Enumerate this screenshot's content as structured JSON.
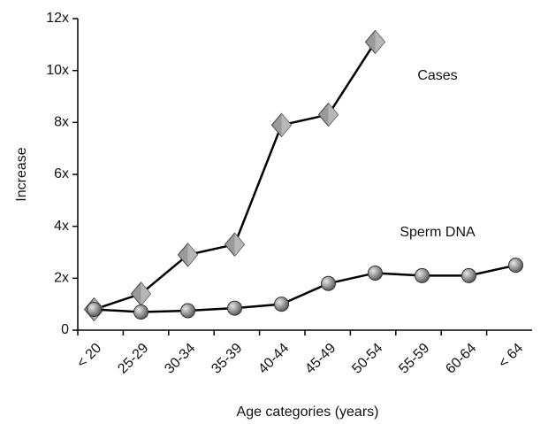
{
  "chart_data": {
    "type": "line",
    "categories": [
      "< 20",
      "25-29",
      "30-34",
      "35-39",
      "40-44",
      "45-49",
      "50-54",
      "55-59",
      "60-64",
      "< 64"
    ],
    "series": [
      {
        "name": "Cases",
        "color": "#9a9a9a",
        "marker": "diamond",
        "values": [
          0.8,
          1.4,
          2.9,
          3.3,
          7.9,
          8.3,
          11.1,
          null,
          null,
          null
        ]
      },
      {
        "name": "Sperm DNA",
        "color": "#8c8c8c",
        "marker": "circle",
        "values": [
          0.8,
          0.7,
          0.75,
          0.85,
          1.0,
          1.8,
          2.2,
          2.1,
          2.1,
          2.5
        ]
      }
    ],
    "line_color": "#000000",
    "ylabel": "Increase",
    "xlabel": "Age categories (years)",
    "ylim": [
      0,
      12
    ],
    "yticks": [
      0,
      {
        "value": 2,
        "label": "2x"
      },
      {
        "value": 4,
        "label": "4x"
      },
      {
        "value": 6,
        "label": "6x"
      },
      {
        "value": 8,
        "label": "8x"
      },
      {
        "value": 10,
        "label": "10x"
      },
      {
        "value": 12,
        "label": "12x"
      }
    ]
  }
}
